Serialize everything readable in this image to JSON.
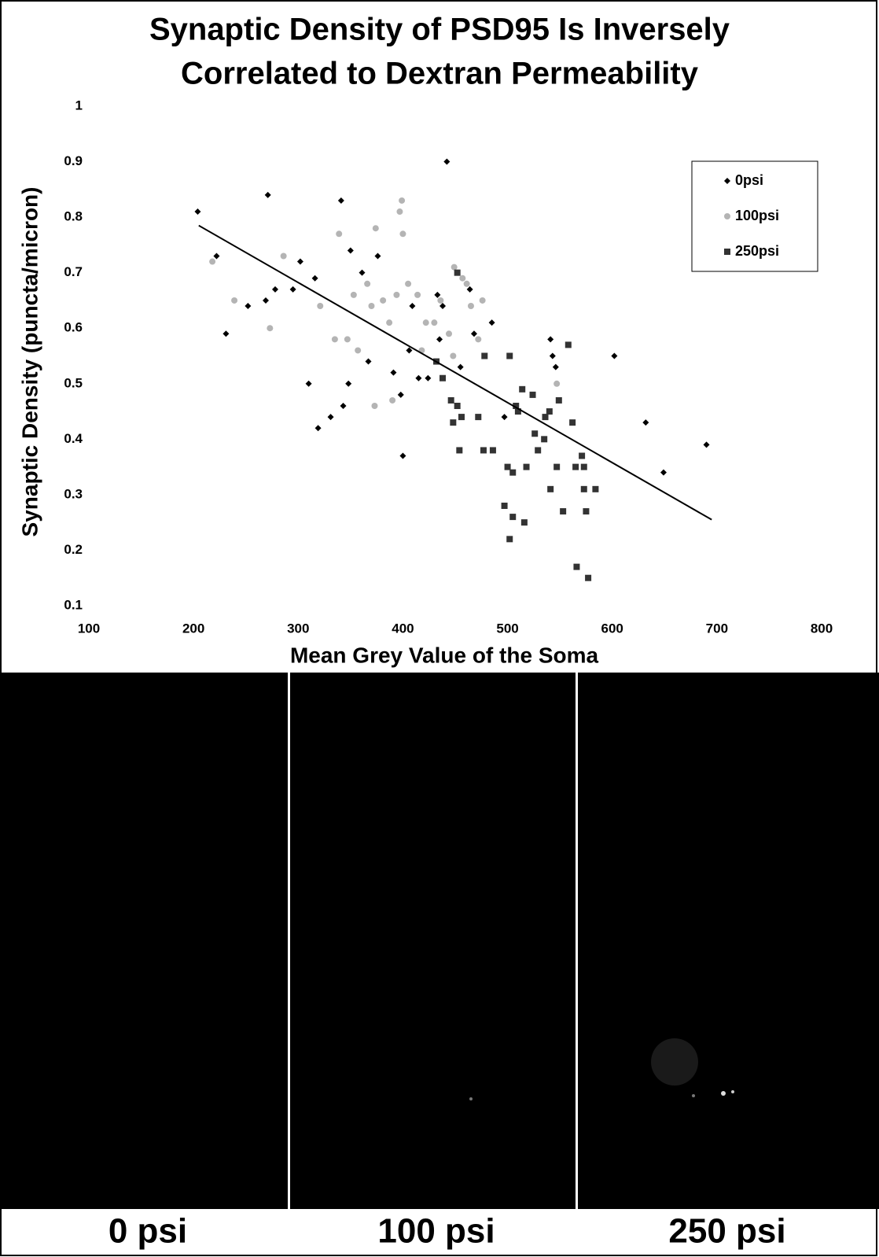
{
  "chart_data": {
    "type": "scatter",
    "title": [
      "Synaptic Density of PSD95 Is Inversely",
      "Correlated to Dextran Permeability"
    ],
    "x_label": "Mean Grey Value of the Soma",
    "y_label": "Synaptic Density (puncta/micron)",
    "xlim": [
      100,
      800
    ],
    "xticks": [
      100,
      200,
      300,
      400,
      500,
      600,
      700,
      800
    ],
    "ylim": [
      0.1,
      1
    ],
    "yticks": [
      0.1,
      0.2,
      0.3,
      0.4,
      0.5,
      0.6,
      0.7,
      0.8,
      0.9,
      1
    ],
    "grid": false,
    "legend": "upper right",
    "series": [
      {
        "name": "0psi",
        "color": "#000000",
        "marker": "diamond",
        "x": [
          204,
          222,
          231,
          252,
          271,
          269,
          278,
          295,
          302,
          316,
          310,
          319,
          331,
          341,
          343,
          348,
          350,
          361,
          367,
          376,
          391,
          398,
          400,
          406,
          409,
          415,
          424,
          433,
          435,
          438,
          442,
          455,
          464,
          485,
          468,
          497,
          541,
          543,
          546,
          602,
          632,
          649,
          690
        ],
        "y": [
          0.81,
          0.73,
          0.59,
          0.64,
          0.84,
          0.65,
          0.67,
          0.67,
          0.72,
          0.69,
          0.5,
          0.42,
          0.44,
          0.83,
          0.46,
          0.5,
          0.74,
          0.7,
          0.54,
          0.73,
          0.52,
          0.48,
          0.37,
          0.56,
          0.64,
          0.51,
          0.51,
          0.66,
          0.58,
          0.64,
          0.9,
          0.53,
          0.67,
          0.61,
          0.59,
          0.44,
          0.58,
          0.55,
          0.53,
          0.55,
          0.43,
          0.34,
          0.39
        ]
      },
      {
        "name": "100psi",
        "color": "#b4b4b4",
        "marker": "circle",
        "x": [
          218,
          239,
          273,
          286,
          321,
          339,
          335,
          347,
          353,
          357,
          366,
          370,
          374,
          381,
          387,
          373,
          390,
          394,
          397,
          399,
          400,
          405,
          414,
          422,
          430,
          436,
          444,
          449,
          457,
          461,
          465,
          472,
          476,
          547,
          448,
          418
        ],
        "y": [
          0.72,
          0.65,
          0.6,
          0.73,
          0.64,
          0.77,
          0.58,
          0.58,
          0.66,
          0.56,
          0.68,
          0.64,
          0.78,
          0.65,
          0.61,
          0.46,
          0.47,
          0.66,
          0.81,
          0.83,
          0.77,
          0.68,
          0.66,
          0.61,
          0.61,
          0.65,
          0.59,
          0.71,
          0.69,
          0.68,
          0.64,
          0.58,
          0.65,
          0.5,
          0.55,
          0.56
        ]
      },
      {
        "name": "250psi",
        "color": "#333333",
        "marker": "square",
        "x": [
          432,
          438,
          452,
          446,
          448,
          452,
          456,
          454,
          472,
          477,
          478,
          486,
          502,
          497,
          502,
          505,
          500,
          505,
          508,
          514,
          516,
          518,
          524,
          526,
          529,
          535,
          540,
          541,
          547,
          549,
          553,
          558,
          562,
          565,
          566,
          571,
          573,
          573,
          575,
          577,
          584,
          536,
          510
        ],
        "y": [
          0.54,
          0.51,
          0.7,
          0.47,
          0.43,
          0.46,
          0.44,
          0.38,
          0.44,
          0.38,
          0.55,
          0.38,
          0.55,
          0.28,
          0.22,
          0.26,
          0.35,
          0.34,
          0.46,
          0.49,
          0.25,
          0.35,
          0.48,
          0.41,
          0.38,
          0.4,
          0.45,
          0.31,
          0.35,
          0.47,
          0.27,
          0.57,
          0.43,
          0.35,
          0.17,
          0.37,
          0.31,
          0.35,
          0.27,
          0.15,
          0.31,
          0.44,
          0.45
        ]
      }
    ],
    "trendline": {
      "color": "#000000",
      "x": [
        205,
        695
      ],
      "y": [
        0.785,
        0.255
      ]
    }
  },
  "figure_panels": [
    {
      "label": "0 psi"
    },
    {
      "label": "100 psi"
    },
    {
      "label": "250 psi"
    }
  ]
}
